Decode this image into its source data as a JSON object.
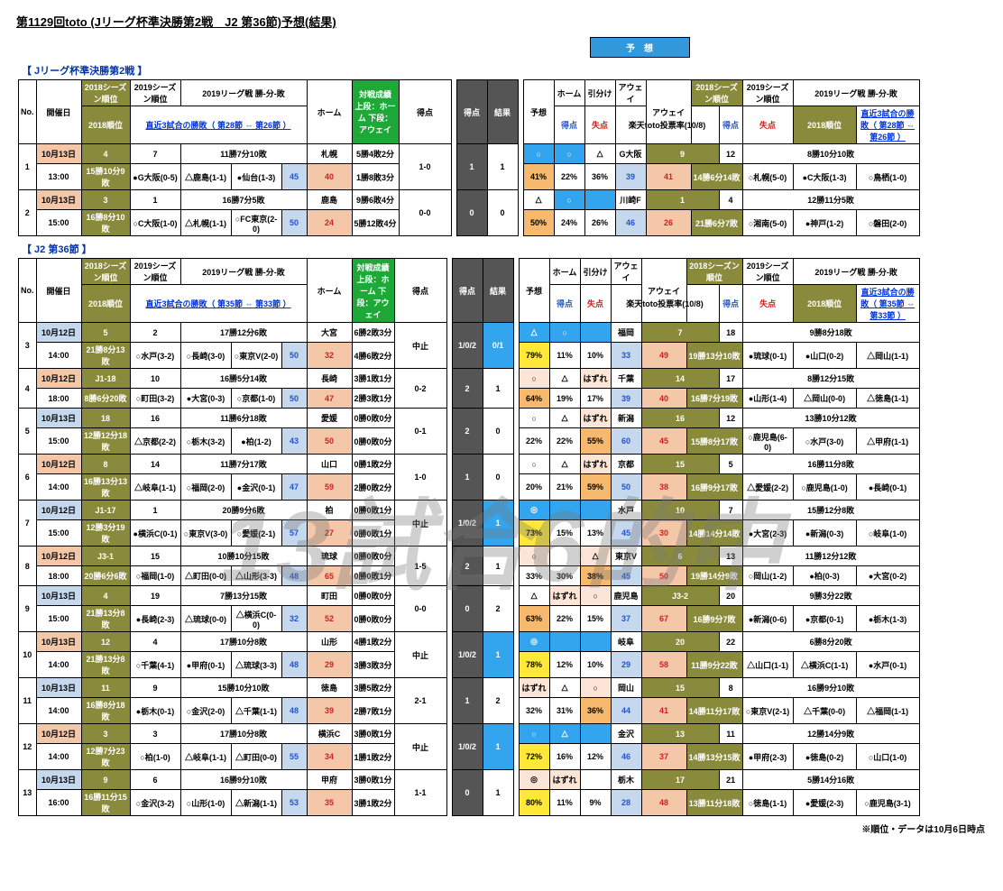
{
  "title": "第1129回toto (Jリーグ杯準決勝第2戦　J2 第36節)予想(結果)",
  "sub1": "【 Jリーグ杯準決勝第2戦 】",
  "sub2": "【 J2 第36節 】",
  "yoso_btn": "予　想",
  "footnote": "※順位・データは10月6日時点",
  "watermark": "13試合6的中",
  "hdr": {
    "no": "No.",
    "date": "開催日",
    "s18a": "2018シーズン順位",
    "s18b": "2018順位",
    "r19": "2019シーズン順位",
    "rec19": "2019リーグ戦 勝-分-敗",
    "rec3a": "直近3試合の勝敗（ 第28節 ⇔ 第26節 ）",
    "rec3b": "直近3試合の勝敗（ 第35節 ⇔ 第33節 ）",
    "home": "ホーム",
    "pts": "得点",
    "pts2": "失点",
    "past": "対戦成績 上段：ホーム 下段：アウェイ",
    "score": "得点",
    "result": "結果",
    "yoso": "予想",
    "h": "ホーム",
    "d": "引分け",
    "a": "アウェイ",
    "away": "アウェイ",
    "vote": "楽天toto投票率(10/8)"
  },
  "rows1": [
    {
      "no": "1",
      "d1": "10月13日",
      "d2": "13:00",
      "s18": "4",
      "s18b": "15勝10分9敗",
      "r19": "7",
      "rec": "11勝7分10敗",
      "p1": "●G大阪(0-5)",
      "p2": "△鹿島(1-1)",
      "p3": "●仙台(1-3)",
      "home": "札幌",
      "g": "45",
      "l": "40",
      "pa1": "5勝4敗2分",
      "pa2": "1勝8敗3分",
      "sc": "1-0",
      "res": "1",
      "yoso": "1",
      "hp": "○",
      "hp_c": "c-sky",
      "dp": "○",
      "dp_c": "c-sky",
      "ap": "△",
      "ap_c": "",
      "hv": "41%",
      "hv_c": "c-orange",
      "dv": "22%",
      "av": "36%",
      "ag": "39",
      "al": "41",
      "as18": "9",
      "as18b": "14勝6分14敗",
      "ar19": "12",
      "arec": "8勝10分10敗",
      "ap1": "○札幌(5-0)",
      "ap2": "●C大阪(1-3)",
      "ap3": "○鳥栖(1-0)",
      "away": "G大阪"
    },
    {
      "no": "2",
      "d1": "10月13日",
      "d2": "15:00",
      "s18": "3",
      "s18b": "16勝8分10敗",
      "r19": "1",
      "rec": "16勝7分5敗",
      "p1": "○C大阪(1-0)",
      "p2": "△札幌(1-1)",
      "p3": "○FC東京(2-0)",
      "home": "鹿島",
      "g": "50",
      "l": "24",
      "pa1": "9勝6敗4分",
      "pa2": "5勝12敗4分",
      "sc": "0-0",
      "res": "0",
      "yoso": "0",
      "hp": "△",
      "hp_c": "",
      "dp": "○",
      "dp_c": "c-sky",
      "ap": "",
      "ap_c": "c-sky",
      "hv": "50%",
      "hv_c": "c-orange",
      "dv": "24%",
      "av": "26%",
      "ag": "46",
      "al": "26",
      "as18": "1",
      "as18b": "21勝6分7敗",
      "ar19": "4",
      "arec": "12勝11分5敗",
      "ap1": "○湘南(5-0)",
      "ap2": "●神戸(1-2)",
      "ap3": "○磐田(2-0)",
      "away": "川崎F"
    }
  ],
  "rows2": [
    {
      "no": "3",
      "d1": "10月12日",
      "d2": "14:00",
      "s18": "5",
      "s18b": "21勝8分13敗",
      "r19": "2",
      "rec": "17勝12分6敗",
      "p1": "○水戸(3-2)",
      "p2": "○長崎(3-0)",
      "p3": "○東京V(2-0)",
      "home": "大宮",
      "g": "50",
      "l": "32",
      "pa1": "6勝2敗3分",
      "pa2": "4勝6敗2分",
      "sc": "中止",
      "res": "1/0/2",
      "yoso": "0/1",
      "yc": "c-sky",
      "hp": "△",
      "hp_c": "c-sky",
      "dp": "○",
      "dp_c": "c-sky",
      "ap": "",
      "ap_c": "c-sky",
      "hv": "79%",
      "hv_c": "c-yellow",
      "dv": "11%",
      "av": "10%",
      "ag": "33",
      "al": "49",
      "as18": "7",
      "as18b": "19勝13分10敗",
      "ar19": "18",
      "arec": "9勝8分18敗",
      "ap1": "●琉球(0-1)",
      "ap2": "●山口(0-2)",
      "ap3": "△岡山(1-1)",
      "away": "福岡"
    },
    {
      "no": "4",
      "d1": "10月12日",
      "d2": "18:00",
      "s18": "J1-18",
      "s18b": "8勝6分20敗",
      "r19": "10",
      "rec": "16勝5分14敗",
      "p1": "○町田(3-2)",
      "p2": "●大宮(0-3)",
      "p3": "○京都(1-0)",
      "home": "長崎",
      "g": "50",
      "l": "47",
      "pa1": "3勝1敗1分",
      "pa2": "2勝3敗1分",
      "sc": "0-2",
      "res": "2",
      "yoso": "1",
      "yc": "",
      "hp": "○",
      "hp_c": "c-lpeach",
      "dp": "△",
      "dp_c": "",
      "ap": "はずれ",
      "ap_c": "c-lpeach",
      "hv": "64%",
      "hv_c": "c-orange",
      "dv": "19%",
      "av": "17%",
      "ag": "39",
      "al": "40",
      "as18": "14",
      "as18b": "16勝7分19敗",
      "ar19": "17",
      "arec": "8勝12分15敗",
      "ap1": "●山形(1-4)",
      "ap2": "△岡山(0-0)",
      "ap3": "△徳島(1-1)",
      "away": "千葉"
    },
    {
      "no": "5",
      "d1": "10月13日",
      "d2": "15:00",
      "s18": "18",
      "s18b": "12勝12分18敗",
      "r19": "16",
      "rec": "11勝6分18敗",
      "p1": "△京都(2-2)",
      "p2": "○栃木(3-2)",
      "p3": "●柏(1-2)",
      "home": "愛媛",
      "g": "43",
      "l": "50",
      "pa1": "0勝0敗0分",
      "pa2": "0勝0敗0分",
      "sc": "0-1",
      "res": "2",
      "yoso": "0",
      "yc": "",
      "hp": "○",
      "hp_c": "",
      "dp": "△",
      "dp_c": "",
      "ap": "はずれ",
      "ap_c": "c-lpeach",
      "hv": "22%",
      "hv_c": "",
      "dv": "22%",
      "av": "55%",
      "av_c": "c-orange",
      "ag": "60",
      "al": "45",
      "as18": "16",
      "as18b": "15勝8分17敗",
      "ar19": "12",
      "arec": "13勝10分12敗",
      "ap1": "○鹿児島(6-0)",
      "ap2": "○水戸(3-0)",
      "ap3": "△甲府(1-1)",
      "away": "新潟"
    },
    {
      "no": "6",
      "d1": "10月12日",
      "d2": "14:00",
      "s18": "8",
      "s18b": "16勝13分13敗",
      "r19": "14",
      "rec": "11勝7分17敗",
      "p1": "△岐阜(1-1)",
      "p2": "○福岡(2-0)",
      "p3": "●金沢(0-1)",
      "home": "山口",
      "g": "47",
      "l": "59",
      "pa1": "0勝1敗2分",
      "pa2": "2勝0敗2分",
      "sc": "1-0",
      "res": "1",
      "yoso": "0",
      "yc": "",
      "hp": "○",
      "hp_c": "",
      "dp": "△",
      "dp_c": "",
      "ap": "はずれ",
      "ap_c": "c-lpeach",
      "hv": "20%",
      "hv_c": "",
      "dv": "21%",
      "av": "59%",
      "av_c": "c-orange",
      "ag": "50",
      "al": "38",
      "as18": "15",
      "as18b": "16勝9分17敗",
      "ar19": "5",
      "arec": "16勝11分8敗",
      "ap1": "△愛媛(2-2)",
      "ap2": "○鹿児島(1-0)",
      "ap3": "●長崎(0-1)",
      "away": "京都"
    },
    {
      "no": "7",
      "d1": "10月12日",
      "d2": "15:00",
      "s18": "J1-17",
      "s18b": "12勝3分19敗",
      "r19": "1",
      "rec": "20勝9分6敗",
      "p1": "●横浜C(0-1)",
      "p2": "○東京V(3-0)",
      "p3": "○愛媛(2-1)",
      "home": "柏",
      "g": "57",
      "l": "27",
      "pa1": "0勝0敗1分",
      "pa2": "0勝0敗1分",
      "sc": "中止",
      "res": "1/0/2",
      "yoso": "1",
      "yc": "c-sky",
      "hp": "◎",
      "hp_c": "c-sky",
      "dp": "",
      "dp_c": "c-sky",
      "ap": "",
      "ap_c": "c-sky",
      "hv": "73%",
      "hv_c": "c-yellow",
      "dv": "15%",
      "av": "13%",
      "ag": "45",
      "al": "30",
      "as18": "10",
      "as18b": "14勝14分14敗",
      "ar19": "7",
      "arec": "15勝12分8敗",
      "ap1": "●大宮(2-3)",
      "ap2": "●新潟(0-3)",
      "ap3": "○岐阜(1-0)",
      "away": "水戸"
    },
    {
      "no": "8",
      "d1": "10月12日",
      "d2": "18:00",
      "s18": "J3-1",
      "s18b": "20勝6分6敗",
      "r19": "15",
      "rec": "10勝10分15敗",
      "p1": "○福岡(1-0)",
      "p2": "△町田(0-0)",
      "p3": "△山形(3-3)",
      "home": "琉球",
      "g": "48",
      "l": "65",
      "pa1": "0勝0敗0分",
      "pa2": "0勝0敗1分",
      "sc": "1-5",
      "res": "2",
      "yoso": "1",
      "yc": "",
      "hp": "○",
      "hp_c": "c-lpeach",
      "dp": "",
      "dp_c": "",
      "ap": "△",
      "ap_c": "c-lpeach",
      "hv": "33%",
      "hv_c": "",
      "dv": "30%",
      "av": "38%",
      "av_c": "c-orange",
      "ag": "45",
      "al": "50",
      "as18": "6",
      "as18b": "19勝14分9敗",
      "ar19": "13",
      "arec": "11勝12分12敗",
      "ap1": "○岡山(1-2)",
      "ap2": "●柏(0-3)",
      "ap3": "●大宮(0-2)",
      "away": "東京V"
    },
    {
      "no": "9",
      "d1": "10月13日",
      "d2": "15:00",
      "s18": "4",
      "s18b": "21勝13分8敗",
      "r19": "19",
      "rec": "7勝13分15敗",
      "p1": "●長崎(2-3)",
      "p2": "△琉球(0-0)",
      "p3": "△横浜C(0-0)",
      "home": "町田",
      "g": "32",
      "l": "52",
      "pa1": "0勝0敗0分",
      "pa2": "0勝0敗0分",
      "sc": "0-0",
      "res": "0",
      "yoso": "2",
      "yc": "",
      "hp": "△",
      "hp_c": "",
      "dp": "はずれ",
      "dp_c": "c-lpeach",
      "ap": "○",
      "ap_c": "c-lpeach",
      "hv": "63%",
      "hv_c": "c-orange",
      "dv": "22%",
      "av": "15%",
      "ag": "37",
      "al": "67",
      "as18": "J3-2",
      "as18b": "16勝9分7敗",
      "ar19": "20",
      "arec": "9勝3分22敗",
      "ap1": "●新潟(0-6)",
      "ap2": "●京都(0-1)",
      "ap3": "●栃木(1-3)",
      "away": "鹿児島"
    },
    {
      "no": "10",
      "d1": "10月13日",
      "d2": "14:00",
      "s18": "12",
      "s18b": "21勝13分8敗",
      "r19": "4",
      "rec": "17勝10分8敗",
      "p1": "○千葉(4-1)",
      "p2": "●甲府(0-1)",
      "p3": "△琉球(3-3)",
      "home": "山形",
      "g": "48",
      "l": "29",
      "pa1": "4勝1敗2分",
      "pa2": "3勝3敗3分",
      "sc": "中止",
      "res": "1/0/2",
      "yoso": "1",
      "yc": "c-sky",
      "hp": "◎",
      "hp_c": "c-sky",
      "dp": "",
      "dp_c": "c-sky",
      "ap": "",
      "ap_c": "c-sky",
      "hv": "78%",
      "hv_c": "c-yellow",
      "dv": "12%",
      "av": "10%",
      "ag": "29",
      "al": "58",
      "as18": "20",
      "as18b": "11勝9分22敗",
      "ar19": "22",
      "arec": "6勝8分20敗",
      "ap1": "△山口(1-1)",
      "ap2": "△横浜C(1-1)",
      "ap3": "●水戸(0-1)",
      "away": "岐阜"
    },
    {
      "no": "11",
      "d1": "10月13日",
      "d2": "14:00",
      "s18": "11",
      "s18b": "16勝8分18敗",
      "r19": "9",
      "rec": "15勝10分10敗",
      "p1": "●栃木(0-1)",
      "p2": "○金沢(2-0)",
      "p3": "△千葉(1-1)",
      "home": "徳島",
      "g": "48",
      "l": "39",
      "pa1": "3勝5敗2分",
      "pa2": "2勝7敗1分",
      "sc": "2-1",
      "res": "1",
      "yoso": "2",
      "yc": "",
      "hp": "はずれ",
      "hp_c": "c-lpeach",
      "dp": "△",
      "dp_c": "",
      "ap": "○",
      "ap_c": "c-lpeach",
      "hv": "32%",
      "hv_c": "",
      "dv": "31%",
      "av": "36%",
      "av_c": "c-orange",
      "ag": "44",
      "al": "41",
      "as18": "15",
      "as18b": "14勝11分17敗",
      "ar19": "8",
      "arec": "16勝9分10敗",
      "ap1": "○東京V(2-1)",
      "ap2": "△千葉(0-0)",
      "ap3": "△福岡(1-1)",
      "away": "岡山"
    },
    {
      "no": "12",
      "d1": "10月12日",
      "d2": "14:00",
      "s18": "3",
      "s18b": "12勝7分23敗",
      "r19": "3",
      "rec": "17勝10分8敗",
      "p1": "○柏(1-0)",
      "p2": "△岐阜(1-1)",
      "p3": "△町田(0-0)",
      "home": "横浜C",
      "g": "55",
      "l": "34",
      "pa1": "3勝0敗1分",
      "pa2": "1勝1敗2分",
      "sc": "中止",
      "res": "1/0/2",
      "yoso": "1",
      "yc": "c-sky",
      "hp": "○",
      "hp_c": "c-sky",
      "dp": "△",
      "dp_c": "c-sky",
      "ap": "",
      "ap_c": "c-sky",
      "hv": "72%",
      "hv_c": "c-yellow",
      "dv": "16%",
      "av": "12%",
      "ag": "46",
      "al": "37",
      "as18": "13",
      "as18b": "14勝13分15敗",
      "ar19": "11",
      "arec": "12勝14分9敗",
      "ap1": "●甲府(2-3)",
      "ap2": "●徳島(0-2)",
      "ap3": "○山口(1-0)",
      "away": "金沢"
    },
    {
      "no": "13",
      "d1": "10月13日",
      "d2": "16:00",
      "s18": "9",
      "s18b": "16勝11分15敗",
      "r19": "6",
      "rec": "16勝9分10敗",
      "p1": "○金沢(3-2)",
      "p2": "○山形(1-0)",
      "p3": "△新潟(1-1)",
      "home": "甲府",
      "g": "53",
      "l": "35",
      "pa1": "3勝0敗1分",
      "pa2": "3勝1敗2分",
      "sc": "1-1",
      "res": "0",
      "yoso": "1",
      "yc": "",
      "hp": "◎",
      "hp_c": "c-lpeach",
      "dp": "はずれ",
      "dp_c": "c-lpeach",
      "ap": "",
      "ap_c": "",
      "hv": "80%",
      "hv_c": "c-yellow",
      "dv": "11%",
      "av": "9%",
      "ag": "28",
      "al": "48",
      "as18": "17",
      "as18b": "13勝11分18敗",
      "ar19": "21",
      "arec": "5勝14分16敗",
      "ap1": "○徳島(1-1)",
      "ap2": "●愛媛(2-3)",
      "ap3": "○鹿児島(3-1)",
      "away": "栃木"
    }
  ]
}
